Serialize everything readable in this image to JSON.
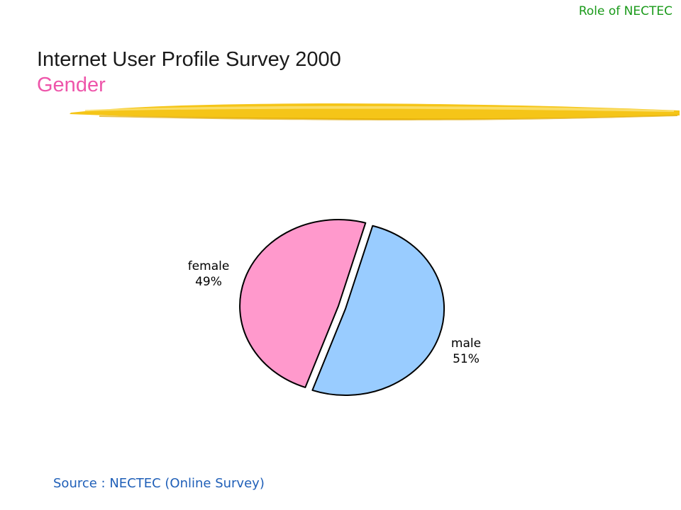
{
  "header": {
    "corner_label": "Role of NECTEC",
    "title": "Internet User Profile Survey 2000",
    "subtitle": "Gender"
  },
  "footer": {
    "source": "Source : NECTEC (Online Survey)"
  },
  "colors": {
    "female": "#ff99cc",
    "male": "#99ccff",
    "brush": "#f5c518"
  },
  "chart_data": {
    "type": "pie",
    "title": "",
    "slices": [
      {
        "label": "female",
        "value": 49,
        "value_label": "49%"
      },
      {
        "label": "male",
        "value": 51,
        "value_label": "51%"
      }
    ]
  }
}
